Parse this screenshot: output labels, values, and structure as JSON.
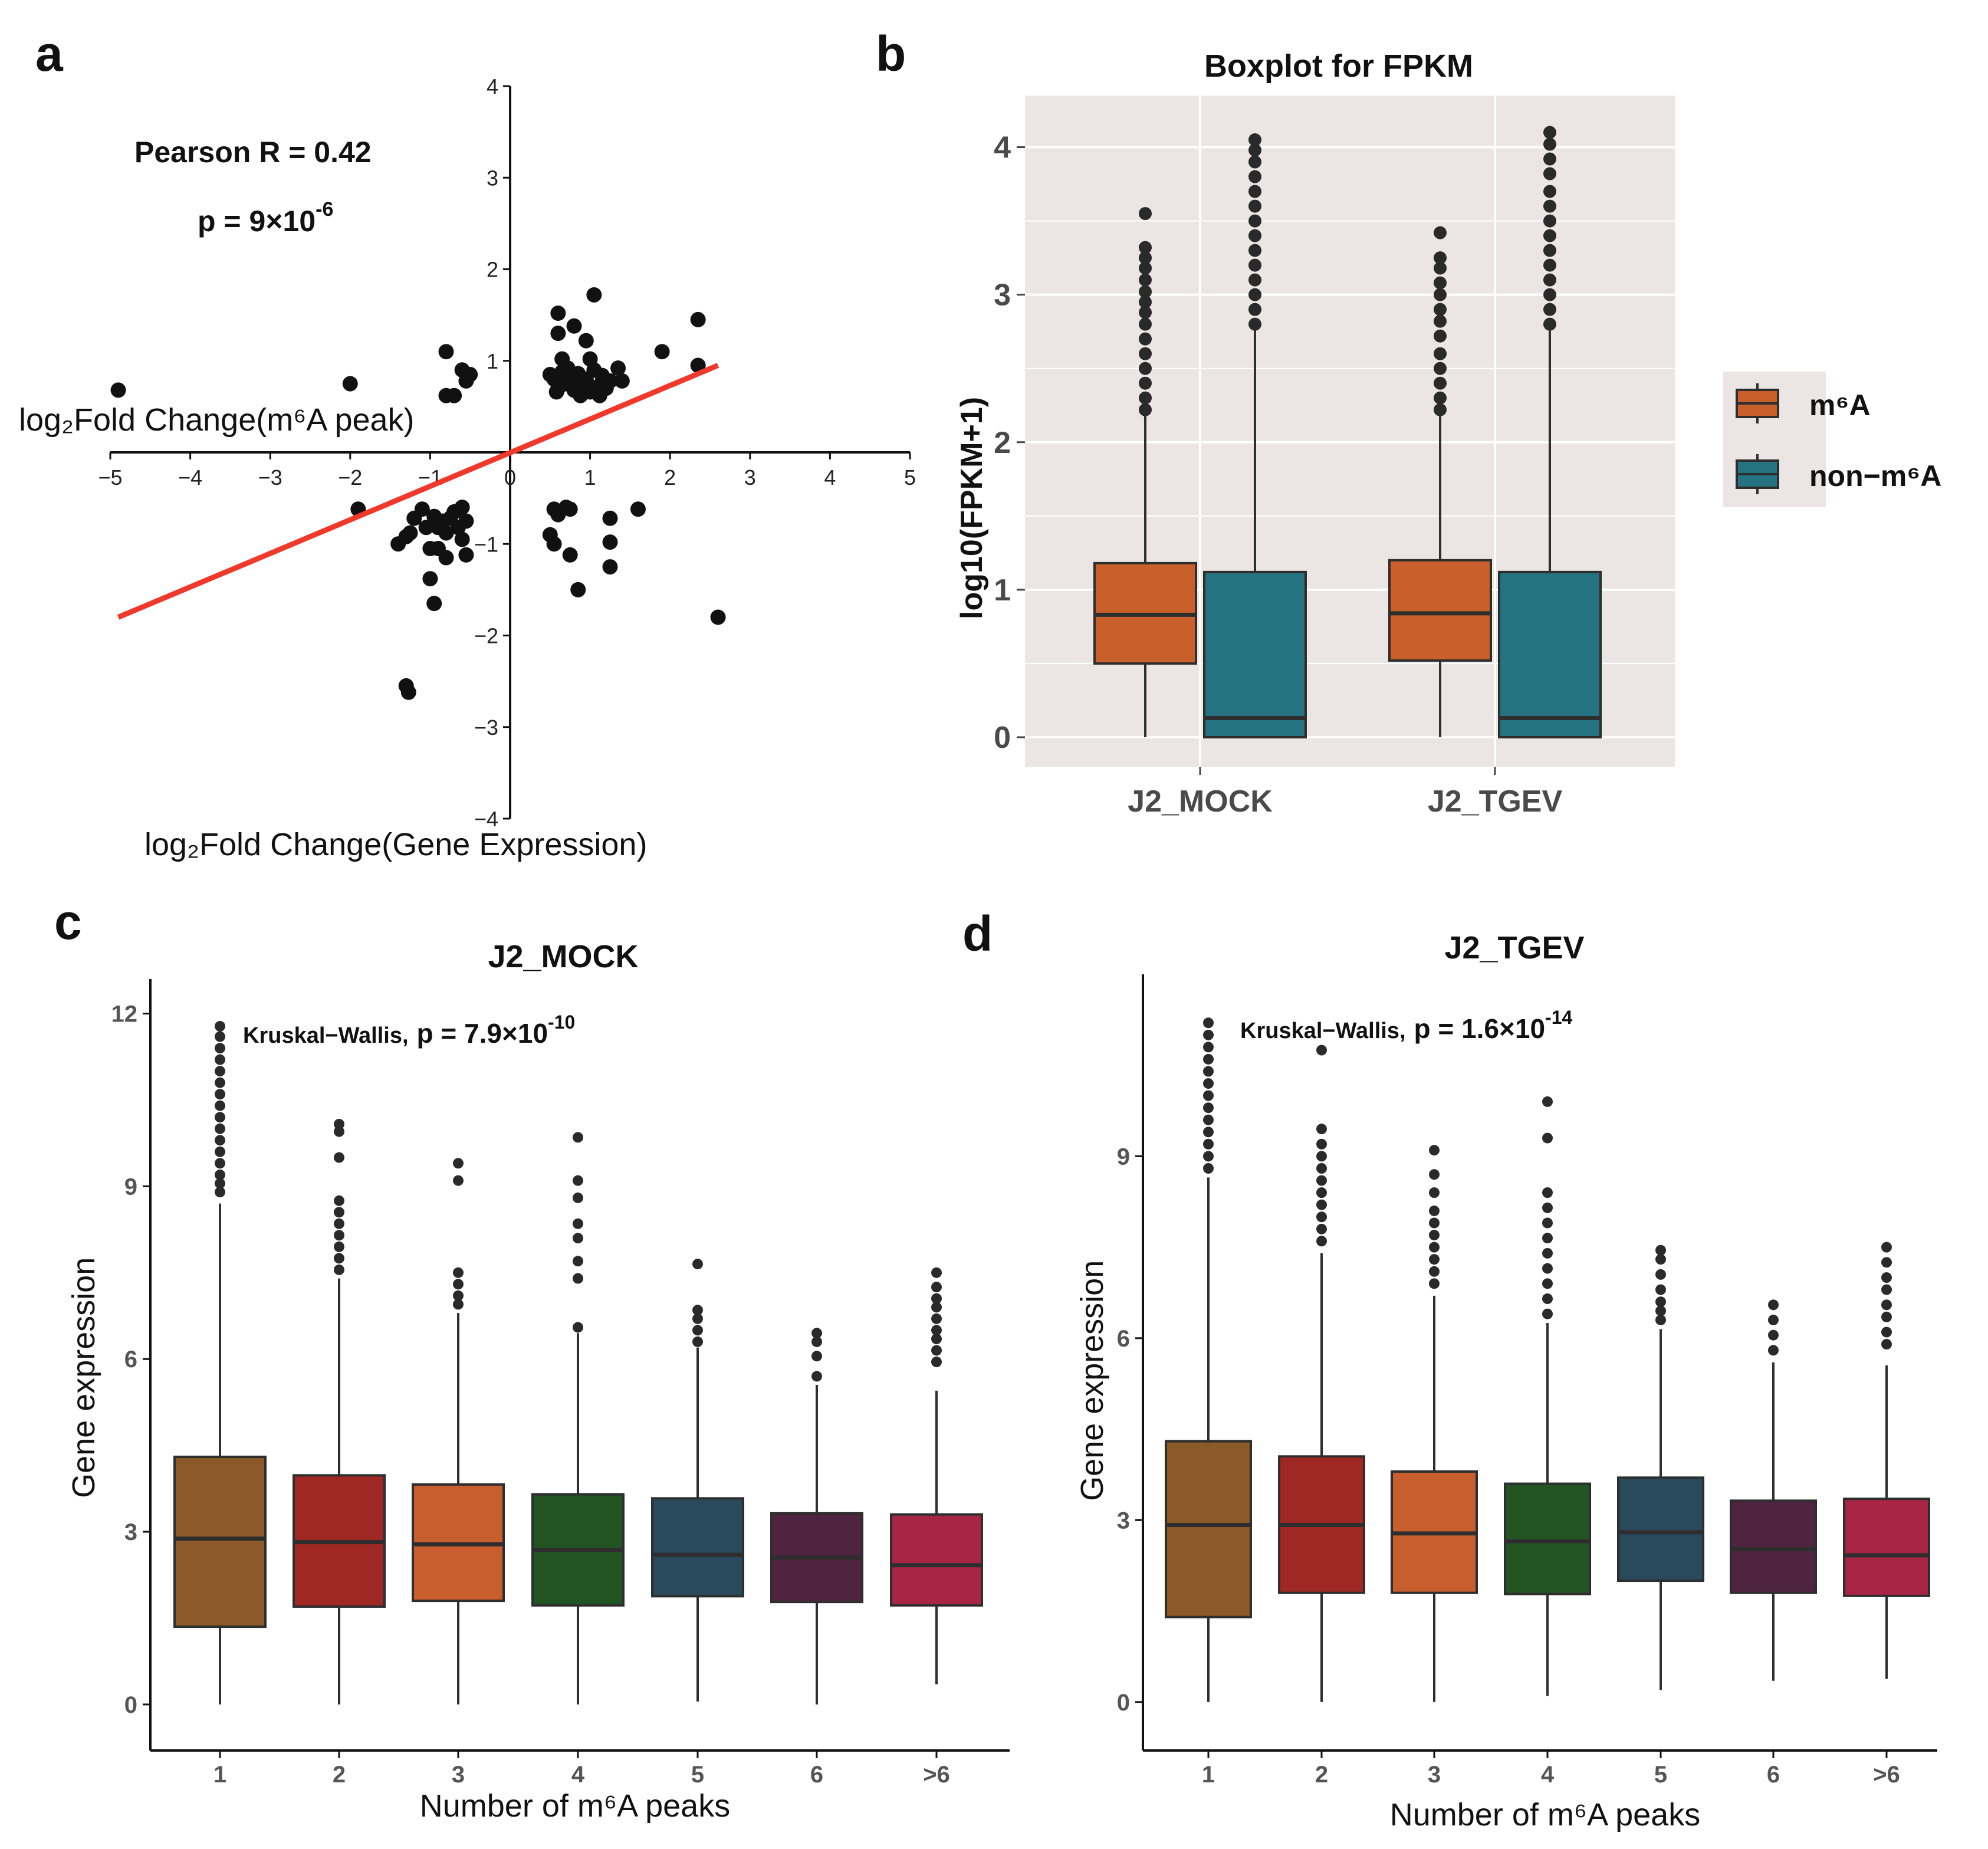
{
  "colors": {
    "panel_b_bg": "#ebe5e3",
    "grid": "#ffffff",
    "fit_line": "#f0392b",
    "points": "#111111",
    "m6A": "#c9602c",
    "non_m6A": "#257280",
    "peaks": [
      "#8b5a28",
      "#a02824",
      "#c85e2e",
      "#235523",
      "#284a5c",
      "#4e2440",
      "#a82546"
    ],
    "outlier": "#2a2a2a",
    "box_line": "#2e2e2e"
  },
  "panels": {
    "a": {
      "label": "a",
      "pearson_text": "Pearson R = 0.42",
      "p_text": "p = 9×10",
      "p_exp": "-6",
      "ylabel": "log₂Fold Change(m⁶A peak)",
      "xlabel": "log₂Fold Change(Gene Expression)"
    },
    "b": {
      "label": "b",
      "title": "Boxplot for FPKM",
      "ylabel": "log10(FPKM+1)",
      "legend": [
        {
          "label": "m⁶A",
          "icon": "orange-box"
        },
        {
          "label": "non−m⁶A",
          "icon": "teal-box"
        }
      ]
    },
    "c": {
      "label": "c",
      "title": "J2_MOCK",
      "test_text": "Kruskal−Wallis,",
      "p_text": "p = 7.9×10",
      "p_exp": "-10",
      "ylabel": "Gene expression",
      "xlabel": "Number of m⁶A peaks"
    },
    "d": {
      "label": "d",
      "title": "J2_TGEV",
      "test_text": "Kruskal−Wallis,",
      "p_text": "p = 1.6×10",
      "p_exp": "-14",
      "ylabel": "Gene expression",
      "xlabel": "Number of m⁶A peaks"
    }
  },
  "chart_data": [
    {
      "id": "a",
      "type": "scatter",
      "title": "",
      "xlabel": "log₂Fold Change(Gene Expression)",
      "ylabel": "log₂Fold Change(m⁶A peak)",
      "xlim": [
        -5,
        5
      ],
      "ylim": [
        -4,
        4
      ],
      "xticks": [
        "−5",
        "−4",
        "−3",
        "−2",
        "−1",
        "0",
        "1",
        "2",
        "3",
        "4",
        "5"
      ],
      "yticks": [
        "4",
        "3",
        "2",
        "1",
        "−1",
        "−2",
        "−3",
        "−4"
      ],
      "annotations": [
        "Pearson R = 0.42",
        "p = 9×10^-6"
      ],
      "fit_line": {
        "x": [
          -4.9,
          2.6
        ],
        "y": [
          -1.8,
          0.95
        ]
      },
      "points": [
        [
          -4.9,
          0.68
        ],
        [
          -2.0,
          0.75
        ],
        [
          -1.9,
          -0.62
        ],
        [
          -0.8,
          1.1
        ],
        [
          -0.8,
          0.62
        ],
        [
          -0.7,
          0.62
        ],
        [
          -0.6,
          0.9
        ],
        [
          -0.55,
          0.78
        ],
        [
          -0.5,
          0.85
        ],
        [
          0.6,
          1.52
        ],
        [
          0.6,
          1.3
        ],
        [
          0.65,
          1.02
        ],
        [
          0.8,
          1.38
        ],
        [
          0.95,
          1.22
        ],
        [
          1.0,
          1.02
        ],
        [
          1.05,
          1.72
        ],
        [
          1.4,
          0.78
        ],
        [
          1.35,
          0.92
        ],
        [
          1.9,
          1.1
        ],
        [
          2.35,
          1.45
        ],
        [
          2.35,
          0.95
        ],
        [
          0.5,
          0.85
        ],
        [
          0.55,
          0.8
        ],
        [
          0.6,
          0.7
        ],
        [
          0.65,
          0.88
        ],
        [
          0.7,
          0.75
        ],
        [
          0.75,
          0.82
        ],
        [
          0.8,
          0.68
        ],
        [
          0.85,
          0.86
        ],
        [
          0.9,
          0.74
        ],
        [
          0.95,
          0.8
        ],
        [
          1.0,
          0.66
        ],
        [
          1.05,
          0.9
        ],
        [
          1.1,
          0.72
        ],
        [
          1.15,
          0.84
        ],
        [
          1.2,
          0.7
        ],
        [
          1.25,
          0.78
        ],
        [
          0.58,
          0.66
        ],
        [
          0.72,
          0.92
        ],
        [
          0.88,
          0.62
        ],
        [
          1.12,
          0.62
        ],
        [
          -1.4,
          -1.0
        ],
        [
          -1.3,
          -0.92
        ],
        [
          -1.25,
          -0.88
        ],
        [
          -1.2,
          -0.72
        ],
        [
          -1.1,
          -0.62
        ],
        [
          -1.05,
          -0.82
        ],
        [
          -1.0,
          -1.05
        ],
        [
          -0.95,
          -0.7
        ],
        [
          -0.9,
          -0.82
        ],
        [
          -0.85,
          -0.75
        ],
        [
          -0.8,
          -0.88
        ],
        [
          -0.75,
          -0.72
        ],
        [
          -0.7,
          -0.65
        ],
        [
          -0.65,
          -0.82
        ],
        [
          -0.6,
          -0.6
        ],
        [
          -0.55,
          -0.75
        ],
        [
          -0.6,
          -0.95
        ],
        [
          -0.9,
          -1.05
        ],
        [
          -0.8,
          -1.15
        ],
        [
          -0.55,
          -1.12
        ],
        [
          -1.0,
          -1.38
        ],
        [
          -0.95,
          -1.65
        ],
        [
          -1.3,
          -2.55
        ],
        [
          -1.27,
          -2.62
        ],
        [
          0.55,
          -0.62
        ],
        [
          0.6,
          -0.68
        ],
        [
          0.7,
          -0.6
        ],
        [
          0.75,
          -0.62
        ],
        [
          0.5,
          -0.9
        ],
        [
          0.55,
          -1.0
        ],
        [
          0.75,
          -1.12
        ],
        [
          0.85,
          -1.5
        ],
        [
          1.25,
          -0.72
        ],
        [
          1.25,
          -0.98
        ],
        [
          1.25,
          -1.25
        ],
        [
          1.6,
          -0.62
        ],
        [
          2.6,
          -1.8
        ]
      ]
    },
    {
      "id": "b",
      "type": "box",
      "title": "Boxplot for FPKM",
      "xlabel": "",
      "ylabel": "log10(FPKM+1)",
      "ylim": [
        -0.2,
        4.35
      ],
      "yticks": [
        "0",
        "1",
        "2",
        "3",
        "4"
      ],
      "categories": [
        "J2_MOCK",
        "J2_TGEV"
      ],
      "series": [
        {
          "name": "m⁶A",
          "boxes": [
            {
              "q1": 0.5,
              "median": 0.83,
              "q3": 1.18,
              "whisker_low": 0.0,
              "whisker_high": 2.2,
              "outliers": [
                2.22,
                2.3,
                2.4,
                2.5,
                2.6,
                2.7,
                2.8,
                2.88,
                2.95,
                3.02,
                3.1,
                3.18,
                3.25,
                3.32,
                3.55
              ]
            },
            {
              "q1": 0.52,
              "median": 0.84,
              "q3": 1.2,
              "whisker_low": 0.0,
              "whisker_high": 2.2,
              "outliers": [
                2.22,
                2.3,
                2.4,
                2.5,
                2.6,
                2.72,
                2.82,
                2.9,
                3.0,
                3.08,
                3.18,
                3.25,
                3.42
              ]
            }
          ]
        },
        {
          "name": "non−m⁶A",
          "boxes": [
            {
              "q1": 0.0,
              "median": 0.13,
              "q3": 1.12,
              "whisker_low": 0.0,
              "whisker_high": 2.77,
              "outliers": [
                2.8,
                2.9,
                3.0,
                3.1,
                3.2,
                3.3,
                3.4,
                3.5,
                3.6,
                3.7,
                3.8,
                3.9,
                3.98,
                4.05
              ]
            },
            {
              "q1": 0.0,
              "median": 0.13,
              "q3": 1.12,
              "whisker_low": 0.0,
              "whisker_high": 2.77,
              "outliers": [
                2.8,
                2.9,
                3.0,
                3.1,
                3.2,
                3.3,
                3.4,
                3.5,
                3.6,
                3.7,
                3.82,
                3.92,
                4.02,
                4.1
              ]
            }
          ]
        }
      ]
    },
    {
      "id": "c",
      "type": "box",
      "title": "J2_MOCK",
      "xlabel": "Number of m⁶A peaks",
      "ylabel": "Gene expression",
      "ylim": [
        -0.8,
        12.6
      ],
      "yticks": [
        "0",
        "3",
        "6",
        "9",
        "12"
      ],
      "categories": [
        "1",
        "2",
        "3",
        "4",
        "5",
        "6",
        ">6"
      ],
      "annotations": [
        "Kruskal−Wallis, p = 7.9×10^-10"
      ],
      "boxes": [
        {
          "q1": 1.35,
          "median": 2.88,
          "q3": 4.3,
          "whisker_low": 0.0,
          "whisker_high": 8.7,
          "outliers": [
            8.9,
            9.05,
            9.2,
            9.4,
            9.6,
            9.8,
            10.0,
            10.2,
            10.4,
            10.6,
            10.8,
            11.0,
            11.2,
            11.4,
            11.6,
            11.78
          ]
        },
        {
          "q1": 1.7,
          "median": 2.82,
          "q3": 3.98,
          "whisker_low": 0.0,
          "whisker_high": 7.4,
          "outliers": [
            7.55,
            7.75,
            7.95,
            8.15,
            8.35,
            8.55,
            8.75,
            9.5,
            9.95,
            10.08
          ]
        },
        {
          "q1": 1.8,
          "median": 2.78,
          "q3": 3.82,
          "whisker_low": 0.0,
          "whisker_high": 6.8,
          "outliers": [
            6.95,
            7.1,
            7.3,
            7.5,
            9.1,
            9.4
          ]
        },
        {
          "q1": 1.72,
          "median": 2.68,
          "q3": 3.65,
          "whisker_low": 0.0,
          "whisker_high": 6.45,
          "outliers": [
            6.55,
            7.4,
            7.7,
            8.1,
            8.35,
            8.8,
            9.1,
            9.85
          ]
        },
        {
          "q1": 1.88,
          "median": 2.6,
          "q3": 3.58,
          "whisker_low": 0.05,
          "whisker_high": 6.2,
          "outliers": [
            6.3,
            6.5,
            6.7,
            6.85,
            7.65
          ]
        },
        {
          "q1": 1.78,
          "median": 2.55,
          "q3": 3.32,
          "whisker_low": 0.0,
          "whisker_high": 5.55,
          "outliers": [
            5.7,
            6.05,
            6.3,
            6.45
          ]
        },
        {
          "q1": 1.72,
          "median": 2.42,
          "q3": 3.3,
          "whisker_low": 0.35,
          "whisker_high": 5.45,
          "outliers": [
            5.95,
            6.15,
            6.35,
            6.5,
            6.7,
            6.9,
            7.05,
            7.25,
            7.5
          ]
        }
      ]
    },
    {
      "id": "d",
      "type": "box",
      "title": "J2_TGEV",
      "xlabel": "Number of m⁶A peaks",
      "ylabel": "Gene expression",
      "ylim": [
        -0.8,
        12.0
      ],
      "yticks": [
        "0",
        "3",
        "6",
        "9"
      ],
      "categories": [
        "1",
        "2",
        "3",
        "4",
        "5",
        "6",
        ">6"
      ],
      "annotations": [
        "Kruskal−Wallis, p = 1.6×10^-14"
      ],
      "boxes": [
        {
          "q1": 1.4,
          "median": 2.92,
          "q3": 4.3,
          "whisker_low": 0.0,
          "whisker_high": 8.65,
          "outliers": [
            8.8,
            9.0,
            9.2,
            9.4,
            9.6,
            9.8,
            10.0,
            10.2,
            10.4,
            10.6,
            10.8,
            11.0,
            11.2
          ]
        },
        {
          "q1": 1.8,
          "median": 2.92,
          "q3": 4.05,
          "whisker_low": 0.0,
          "whisker_high": 7.4,
          "outliers": [
            7.6,
            7.8,
            8.0,
            8.2,
            8.4,
            8.6,
            8.8,
            9.0,
            9.2,
            9.45,
            10.75
          ]
        },
        {
          "q1": 1.8,
          "median": 2.78,
          "q3": 3.8,
          "whisker_low": 0.0,
          "whisker_high": 6.7,
          "outliers": [
            6.9,
            7.1,
            7.3,
            7.5,
            7.7,
            7.9,
            8.1,
            8.4,
            8.7,
            9.1
          ]
        },
        {
          "q1": 1.78,
          "median": 2.65,
          "q3": 3.6,
          "whisker_low": 0.1,
          "whisker_high": 6.25,
          "outliers": [
            6.4,
            6.65,
            6.9,
            7.15,
            7.4,
            7.65,
            7.9,
            8.15,
            8.4,
            9.3,
            9.9
          ]
        },
        {
          "q1": 2.0,
          "median": 2.8,
          "q3": 3.7,
          "whisker_low": 0.2,
          "whisker_high": 6.15,
          "outliers": [
            6.3,
            6.45,
            6.6,
            6.8,
            7.05,
            7.3,
            7.45
          ]
        },
        {
          "q1": 1.8,
          "median": 2.52,
          "q3": 3.32,
          "whisker_low": 0.35,
          "whisker_high": 5.6,
          "outliers": [
            5.8,
            6.05,
            6.3,
            6.55
          ]
        },
        {
          "q1": 1.75,
          "median": 2.42,
          "q3": 3.35,
          "whisker_low": 0.38,
          "whisker_high": 5.55,
          "outliers": [
            5.9,
            6.1,
            6.35,
            6.55,
            6.8,
            7.0,
            7.25,
            7.5
          ]
        }
      ]
    }
  ]
}
